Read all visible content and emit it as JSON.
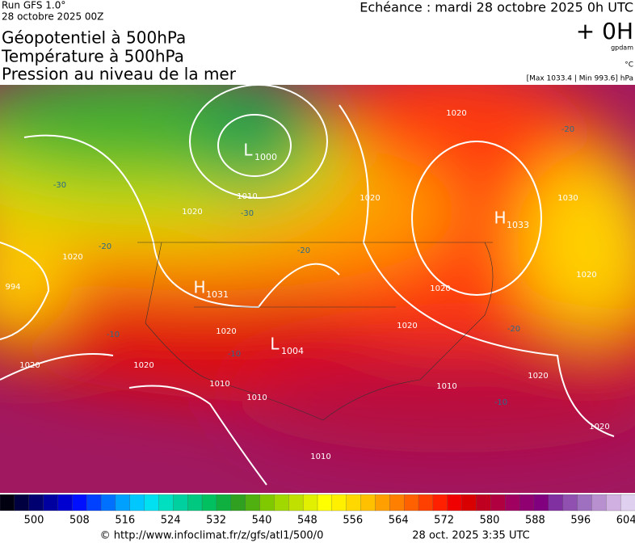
{
  "header": {
    "run": "Run GFS 1.0°",
    "date": "28 octobre 2025 00Z",
    "titles": [
      "Géopotentiel à 500hPa",
      "Température à 500hPa",
      "Pression au niveau de la mer"
    ],
    "echeance": "Echéance : mardi 28 octobre 2025 0h UTC",
    "offset": "+ 0H",
    "unit_geo": "gpdam",
    "unit_temp": "°C",
    "range": "[Max 1033.4 | Min 993.6] hPa"
  },
  "map": {
    "centers": [
      {
        "letter": "H",
        "value": "1031"
      },
      {
        "letter": "L",
        "value": "1004"
      },
      {
        "letter": "H",
        "value": "1033"
      },
      {
        "letter": "L",
        "value": "1000"
      }
    ],
    "labels": [
      "994",
      "1020",
      "1020",
      "1020",
      "1020",
      "1020",
      "1020",
      "1020",
      "1010",
      "1010",
      "1010",
      "1010",
      "1020",
      "1020",
      "1020",
      "1020",
      "1020",
      "1030",
      "1010",
      "-30",
      "-30",
      "-20",
      "-20",
      "-20",
      "-20",
      "-10",
      "-10",
      "-10"
    ]
  },
  "colorbar": {
    "ticks": [
      500,
      508,
      516,
      524,
      532,
      540,
      548,
      556,
      564,
      572,
      580,
      588,
      596,
      604
    ],
    "colors": [
      "#000010",
      "#000040",
      "#000070",
      "#0000a0",
      "#0000d0",
      "#0010ff",
      "#0040ff",
      "#0070ff",
      "#00a0ff",
      "#00c8ff",
      "#00e0f0",
      "#00e0c0",
      "#00d0a0",
      "#00c880",
      "#00c060",
      "#10b040",
      "#30a020",
      "#50b010",
      "#80c800",
      "#a0d800",
      "#c0e000",
      "#e0f000",
      "#ffff00",
      "#fff000",
      "#ffd800",
      "#ffc000",
      "#ffa000",
      "#ff8000",
      "#ff6000",
      "#ff4000",
      "#ff2000",
      "#f00000",
      "#d80000",
      "#c00020",
      "#b00040",
      "#a00060",
      "#900070",
      "#800080",
      "#8030a0",
      "#9050b0",
      "#a070c0",
      "#b890d0",
      "#d0b0e0",
      "#e0d0f0"
    ]
  },
  "footer": {
    "source": "© http://www.infoclimat.fr/z/gfs/atl1/500/0",
    "generated": "28 oct. 2025  3:35 UTC"
  }
}
